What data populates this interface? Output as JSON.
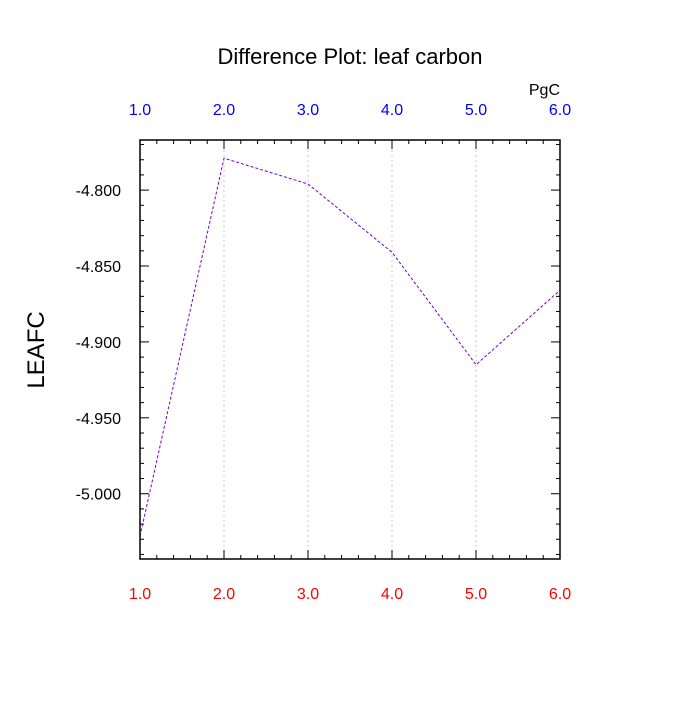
{
  "chart_data": {
    "type": "line",
    "title": "Difference Plot: leaf carbon",
    "units": "PgC",
    "ylabel": "LEAFC",
    "xlabel": "",
    "x": [
      1,
      2,
      3,
      4,
      5,
      6
    ],
    "x_tick_labels": [
      "1.0",
      "2.0",
      "3.0",
      "4.0",
      "5.0",
      "6.0"
    ],
    "xlim": [
      1,
      6
    ],
    "y_ticks": [
      -4.8,
      -4.85,
      -4.9,
      -4.95,
      -5.0
    ],
    "y_tick_labels": [
      "-4.800",
      "-4.850",
      "-4.900",
      "-4.950",
      "-5.000"
    ],
    "ylim": [
      -5.043,
      -4.767
    ],
    "series": [
      {
        "values": [
          -5.028,
          -4.779,
          -4.796,
          -4.841,
          -4.915,
          -4.866
        ],
        "color": "#7a00cc",
        "style": "dashed"
      }
    ],
    "grid": "vertical dotted at major x ticks",
    "colors": {
      "top_axis_labels": "#0000ff",
      "bottom_axis_labels": "#ff0000",
      "grid": "#c8c8c8"
    }
  }
}
